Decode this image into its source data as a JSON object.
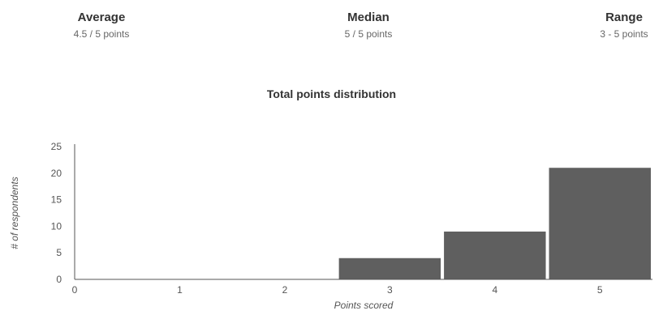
{
  "summary": {
    "average": {
      "title": "Average",
      "value": "4.5 / 5 points"
    },
    "median": {
      "title": "Median",
      "value": "5 / 5 points"
    },
    "range": {
      "title": "Range",
      "value": "3 - 5 points"
    }
  },
  "chart_data": {
    "type": "bar",
    "title": "Total points distribution",
    "xlabel": "Points scored",
    "ylabel": "# of respondents",
    "x_ticks": [
      0,
      1,
      2,
      3,
      4,
      5
    ],
    "categories": [
      3,
      4,
      5
    ],
    "values": [
      4,
      9,
      21
    ],
    "ylim": [
      0,
      25
    ],
    "xlim": [
      0,
      5.5
    ],
    "y_ticks": [
      0,
      5,
      10,
      15,
      20,
      25
    ],
    "grid": false,
    "bar_color": "#5f5f5f"
  }
}
